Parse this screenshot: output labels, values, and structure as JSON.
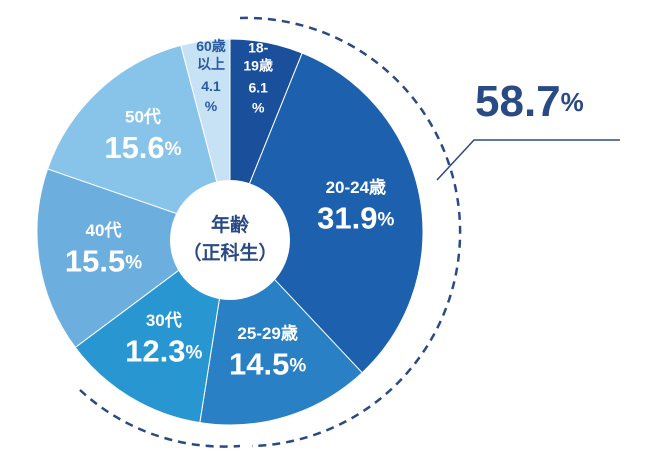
{
  "chart_data": {
    "type": "donut",
    "title": [
      "年齢",
      "（正科生）"
    ],
    "categories": [
      "18-19歳",
      "20-24歳",
      "25-29歳",
      "30代",
      "40代",
      "50代",
      "60歳以上"
    ],
    "values": [
      6.1,
      31.9,
      14.5,
      12.3,
      15.5,
      15.6,
      4.1
    ],
    "value_labels": [
      "6.1%",
      "31.9%",
      "14.5%",
      "12.3%",
      "15.5%",
      "15.6%",
      "4.1%"
    ],
    "colors": [
      "#1a4f9c",
      "#1d60ae",
      "#2a80c5",
      "#2896d0",
      "#6cafde",
      "#88c4e9",
      "#c6e2f4"
    ],
    "annotation": "58.7%"
  }
}
